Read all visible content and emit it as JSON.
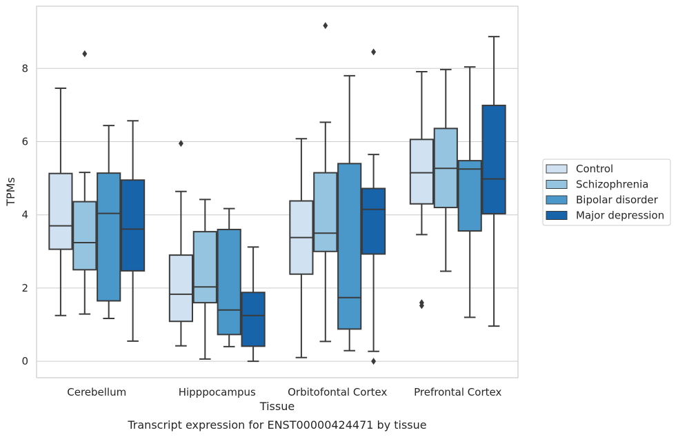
{
  "chart_data": {
    "type": "box",
    "xlabel": "Tissue",
    "ylabel": "TPMs",
    "caption": "Transcript expression for ENST00000424471 by tissue",
    "ylim": [
      -0.45,
      9.7
    ],
    "yticks": [
      0,
      2,
      4,
      6,
      8
    ],
    "grid": "horizontal",
    "legend_position": "right",
    "categories": [
      "Cerebellum",
      "Hipppocampus",
      "Orbitofontal Cortex",
      "Prefrontal Cortex"
    ],
    "series": [
      {
        "name": "Control",
        "color": "#d0e1f2",
        "boxes": [
          {
            "whisker_low": 1.25,
            "q1": 3.06,
            "median": 3.7,
            "q3": 5.13,
            "whisker_high": 7.46,
            "outliers": []
          },
          {
            "whisker_low": 0.42,
            "q1": 1.09,
            "median": 1.83,
            "q3": 2.9,
            "whisker_high": 4.64,
            "outliers": [
              5.95
            ]
          },
          {
            "whisker_low": 0.1,
            "q1": 2.38,
            "median": 3.38,
            "q3": 4.38,
            "whisker_high": 6.08,
            "outliers": []
          },
          {
            "whisker_low": 3.46,
            "q1": 4.3,
            "median": 5.15,
            "q3": 6.06,
            "whisker_high": 7.91,
            "outliers": [
              1.52,
              1.6
            ]
          }
        ]
      },
      {
        "name": "Schizophrenia",
        "color": "#94c4df",
        "boxes": [
          {
            "whisker_low": 1.29,
            "q1": 2.5,
            "median": 3.24,
            "q3": 4.36,
            "whisker_high": 5.16,
            "outliers": [
              8.4
            ]
          },
          {
            "whisker_low": 0.06,
            "q1": 1.6,
            "median": 2.03,
            "q3": 3.54,
            "whisker_high": 4.42,
            "outliers": []
          },
          {
            "whisker_low": 0.54,
            "q1": 3.0,
            "median": 3.5,
            "q3": 5.15,
            "whisker_high": 6.53,
            "outliers": [
              9.17
            ]
          },
          {
            "whisker_low": 2.46,
            "q1": 4.2,
            "median": 5.27,
            "q3": 6.36,
            "whisker_high": 7.97,
            "outliers": []
          }
        ]
      },
      {
        "name": "Bipolar disorder",
        "color": "#4a98c9",
        "boxes": [
          {
            "whisker_low": 1.17,
            "q1": 1.65,
            "median": 4.04,
            "q3": 5.14,
            "whisker_high": 6.44,
            "outliers": []
          },
          {
            "whisker_low": 0.4,
            "q1": 0.73,
            "median": 1.4,
            "q3": 3.6,
            "whisker_high": 4.17,
            "outliers": []
          },
          {
            "whisker_low": 0.29,
            "q1": 0.88,
            "median": 1.74,
            "q3": 5.4,
            "whisker_high": 7.8,
            "outliers": []
          },
          {
            "whisker_low": 1.2,
            "q1": 3.56,
            "median": 5.25,
            "q3": 5.48,
            "whisker_high": 8.04,
            "outliers": []
          }
        ]
      },
      {
        "name": "Major depression",
        "color": "#1764ab",
        "boxes": [
          {
            "whisker_low": 0.55,
            "q1": 2.47,
            "median": 3.61,
            "q3": 4.95,
            "whisker_high": 6.57,
            "outliers": []
          },
          {
            "whisker_low": 0.0,
            "q1": 0.41,
            "median": 1.25,
            "q3": 1.88,
            "whisker_high": 3.12,
            "outliers": []
          },
          {
            "whisker_low": 0.27,
            "q1": 2.93,
            "median": 4.15,
            "q3": 4.72,
            "whisker_high": 5.65,
            "outliers": [
              0.0,
              8.45
            ]
          },
          {
            "whisker_low": 0.96,
            "q1": 4.03,
            "median": 4.98,
            "q3": 6.99,
            "whisker_high": 8.87,
            "outliers": []
          }
        ]
      }
    ]
  }
}
